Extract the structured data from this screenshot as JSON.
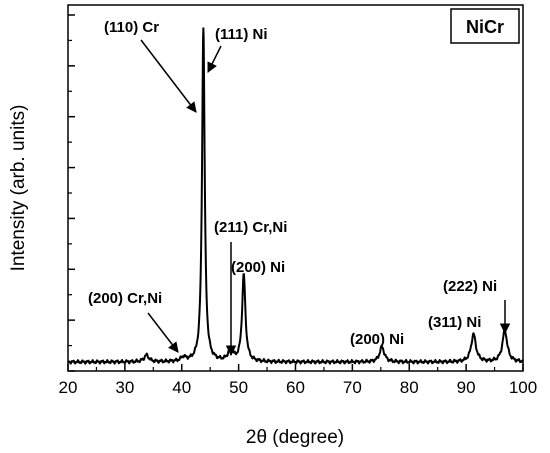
{
  "chart_data": {
    "type": "line",
    "xlabel": "2θ (degree)",
    "ylabel": "Intensity (arb. units)",
    "xlim": [
      20,
      100
    ],
    "x_ticks": [
      "20",
      "30",
      "40",
      "50",
      "60",
      "70",
      "80",
      "90",
      "100"
    ],
    "y_ticks_labeled": false,
    "grid": false,
    "legend": {
      "label": "NiCr",
      "placement": "top-right"
    },
    "series": [
      {
        "name": "NiCr",
        "peaks": [
          {
            "x": 33.8,
            "height": 0.02
          },
          {
            "x": 40.3,
            "height": 0.012
          },
          {
            "x": 43.8,
            "height": 1.0
          },
          {
            "x": 48.6,
            "height": 0.035
          },
          {
            "x": 50.9,
            "height": 0.26
          },
          {
            "x": 75.2,
            "height": 0.045
          },
          {
            "x": 91.3,
            "height": 0.083
          },
          {
            "x": 96.8,
            "height": 0.095
          }
        ]
      }
    ],
    "annotations": [
      {
        "text": "(110) Cr",
        "x": 43.8
      },
      {
        "text": "(111) Ni",
        "x": 43.8
      },
      {
        "text": "(211) Cr,Ni",
        "x": 48.6
      },
      {
        "text": "(200) Ni",
        "x": 50.9
      },
      {
        "text": "(200) Cr,Ni",
        "x": 40.3
      },
      {
        "text": "(200) Ni",
        "x": 75.2
      },
      {
        "text": "(311) Ni",
        "x": 91.3
      },
      {
        "text": "(222) Ni",
        "x": 96.8
      }
    ]
  }
}
